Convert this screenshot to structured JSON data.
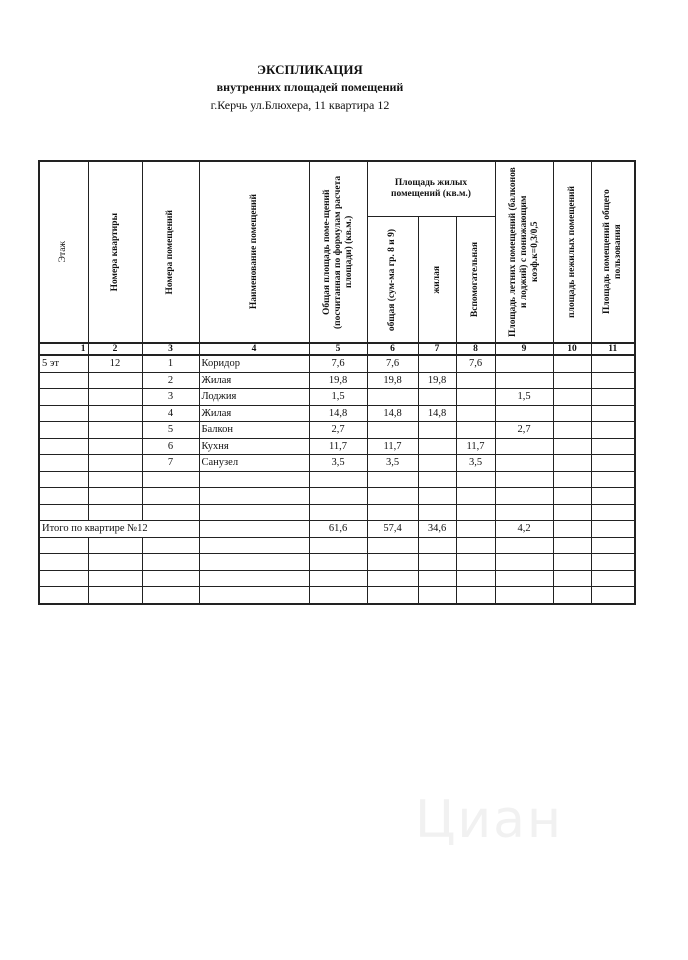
{
  "header": {
    "title": "ЭКСПЛИКАЦИЯ",
    "subtitle": "внутренних площадей помещений",
    "address": "г.Керчь ул.Блюхера, 11 квартира 12"
  },
  "columns": {
    "floor": "Этаж",
    "apartment_no": "Номера квартиры",
    "room_no": "Номера помещений",
    "room_name": "Наименование помещений",
    "total_area": "Общая площадь поме-щений (посчитанная по формулам расчета площади) (кв.м.)",
    "living_group": "Площадь жилых помещений (кв.м.)",
    "living_total": "общая (сум-ма гр. 8 и 9)",
    "living": "жилая",
    "auxiliary": "Вспомогательная",
    "summer": "Площадь летних помещений (балконов и лоджий) с понижающим коэф.к=0,3/0,5",
    "nonliving": "площадь нежилых помещений",
    "common": "Площадь помещений общего пользования"
  },
  "column_numbers": [
    "1",
    "2",
    "3",
    "4",
    "5",
    "6",
    "7",
    "8",
    "9",
    "10",
    "11"
  ],
  "rows": [
    {
      "floor": "5 эт",
      "apt": "12",
      "no": "1",
      "name": "Коридор",
      "c5": "7,6",
      "c6": "7,6",
      "c7": "",
      "c8": "7,6",
      "c9": "",
      "c10": "",
      "c11": ""
    },
    {
      "floor": "",
      "apt": "",
      "no": "2",
      "name": "Жилая",
      "c5": "19,8",
      "c6": "19,8",
      "c7": "19,8",
      "c8": "",
      "c9": "",
      "c10": "",
      "c11": ""
    },
    {
      "floor": "",
      "apt": "",
      "no": "3",
      "name": "Лоджия",
      "c5": "1,5",
      "c6": "",
      "c7": "",
      "c8": "",
      "c9": "1,5",
      "c10": "",
      "c11": ""
    },
    {
      "floor": "",
      "apt": "",
      "no": "4",
      "name": "Жилая",
      "c5": "14,8",
      "c6": "14,8",
      "c7": "14,8",
      "c8": "",
      "c9": "",
      "c10": "",
      "c11": ""
    },
    {
      "floor": "",
      "apt": "",
      "no": "5",
      "name": "Балкон",
      "c5": "2,7",
      "c6": "",
      "c7": "",
      "c8": "",
      "c9": "2,7",
      "c10": "",
      "c11": ""
    },
    {
      "floor": "",
      "apt": "",
      "no": "6",
      "name": "Кухня",
      "c5": "11,7",
      "c6": "11,7",
      "c7": "",
      "c8": "11,7",
      "c9": "",
      "c10": "",
      "c11": ""
    },
    {
      "floor": "",
      "apt": "",
      "no": "7",
      "name": "Санузел",
      "c5": "3,5",
      "c6": "3,5",
      "c7": "",
      "c8": "3,5",
      "c9": "",
      "c10": "",
      "c11": ""
    }
  ],
  "total": {
    "label": "Итого по квартире №12",
    "c5": "61,6",
    "c6": "57,4",
    "c7": "34,6",
    "c8": "",
    "c9": "4,2"
  },
  "watermark": "Циан"
}
